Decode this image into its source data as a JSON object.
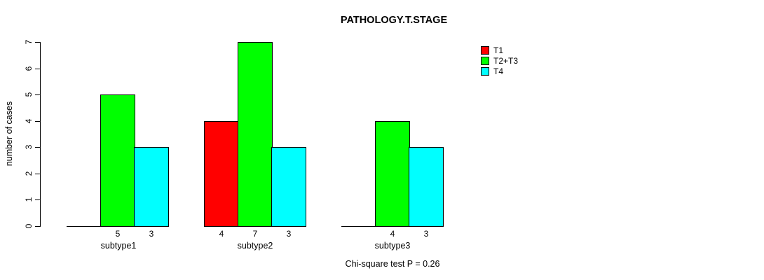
{
  "chart_data": {
    "type": "bar",
    "title": "PATHOLOGY.T.STAGE",
    "xlabel": "",
    "ylabel": "number of cases",
    "annotation": "Chi-square test P = 0.26",
    "categories": [
      "subtype1",
      "subtype2",
      "subtype3"
    ],
    "series": [
      {
        "name": "T1",
        "color": "#FF0000",
        "values": [
          0,
          4,
          0
        ]
      },
      {
        "name": "T2+T3",
        "color": "#00FF00",
        "values": [
          5,
          7,
          4
        ]
      },
      {
        "name": "T4",
        "color": "#00FFFF",
        "values": [
          3,
          3,
          3
        ]
      }
    ],
    "value_labels": [
      [
        "",
        "5",
        "3"
      ],
      [
        "4",
        "7",
        "3"
      ],
      [
        "",
        "4",
        "3"
      ]
    ],
    "yticks": [
      0,
      1,
      2,
      3,
      4,
      5,
      6,
      7
    ],
    "ylim": [
      0,
      7
    ],
    "grid": false,
    "legend_position": "right",
    "bar_border_color": "#000000"
  }
}
